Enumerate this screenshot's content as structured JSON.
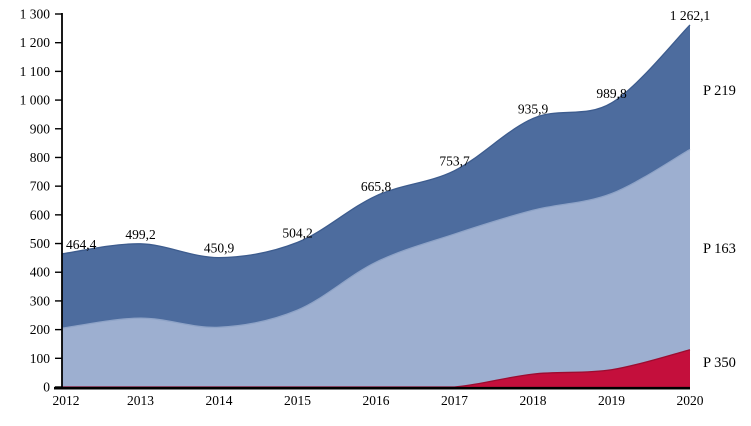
{
  "chart_data": {
    "type": "area",
    "stacked": true,
    "smoothed": true,
    "grid": false,
    "background": "#ffffff",
    "categories": [
      "2012",
      "2013",
      "2014",
      "2015",
      "2016",
      "2017",
      "2018",
      "2019",
      "2020"
    ],
    "series": [
      {
        "name": "P 350",
        "fill": "#c40f3c",
        "stroke": "#9c0c30",
        "values": [
          0,
          0,
          0,
          0,
          0,
          0,
          45,
          60,
          130
        ]
      },
      {
        "name": "P 163",
        "fill": "#9dafd0",
        "stroke": "#8ea3c7",
        "values": [
          205,
          240,
          208,
          268,
          435,
          533,
          571,
          614,
          698
        ]
      },
      {
        "name": "P 219",
        "fill": "#4d6c9e",
        "stroke": "#3d5c8e",
        "values": [
          259,
          259,
          243,
          236,
          231,
          221,
          320,
          316,
          434
        ]
      }
    ],
    "totals": [
      464.4,
      499.2,
      450.9,
      504.2,
      665.8,
      753.7,
      935.9,
      989.8,
      1262.1
    ],
    "total_labels": [
      "464,4",
      "499,2",
      "450,9",
      "504,2",
      "665,8",
      "753,7",
      "935,9",
      "989,8",
      "1 262,1"
    ],
    "y_axis": {
      "min": 0,
      "max": 1300,
      "step": 100,
      "tick_labels": [
        "0",
        "100",
        "200",
        "300",
        "400",
        "500",
        "600",
        "700",
        "800",
        "900",
        "1 000",
        "1 100",
        "1 200",
        "1 300"
      ]
    },
    "right_labels": [
      {
        "text": "P 219",
        "y_value": 1035
      },
      {
        "text": "P 163",
        "y_value": 484
      },
      {
        "text": "P 350",
        "y_value": 87
      }
    ],
    "axis_color": "#000000"
  }
}
